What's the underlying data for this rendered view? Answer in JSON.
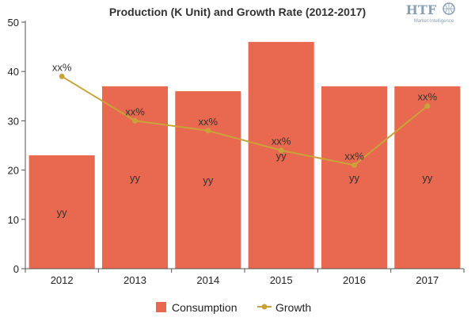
{
  "chart_data": {
    "type": "bar",
    "title": "Production (K Unit) and Growth Rate (2012-2017)",
    "categories": [
      "2012",
      "2013",
      "2014",
      "2015",
      "2016",
      "2017"
    ],
    "ylim": [
      0,
      50
    ],
    "yticks": [
      "0",
      "10",
      "20",
      "30",
      "40",
      "50"
    ],
    "xlabel": "",
    "ylabel": "",
    "grid": false,
    "legend_position": "bottom",
    "series": [
      {
        "name": "Consumption",
        "type": "bar",
        "values": [
          23,
          37,
          36,
          46,
          37,
          37
        ],
        "labels": [
          "yy",
          "yy",
          "yy",
          "yy",
          "yy",
          "yy"
        ],
        "color": "#e8694f"
      },
      {
        "name": "Growth",
        "type": "line",
        "values": [
          39,
          30,
          28,
          24,
          21,
          33
        ],
        "labels": [
          "xx%",
          "xx%",
          "xx%",
          "xx%",
          "xx%",
          "xx%"
        ],
        "color": "#c9a33a"
      }
    ]
  },
  "logo": {
    "text": "HTF",
    "subtitle": "Market Intelligence",
    "color": "#8aa0b4"
  }
}
